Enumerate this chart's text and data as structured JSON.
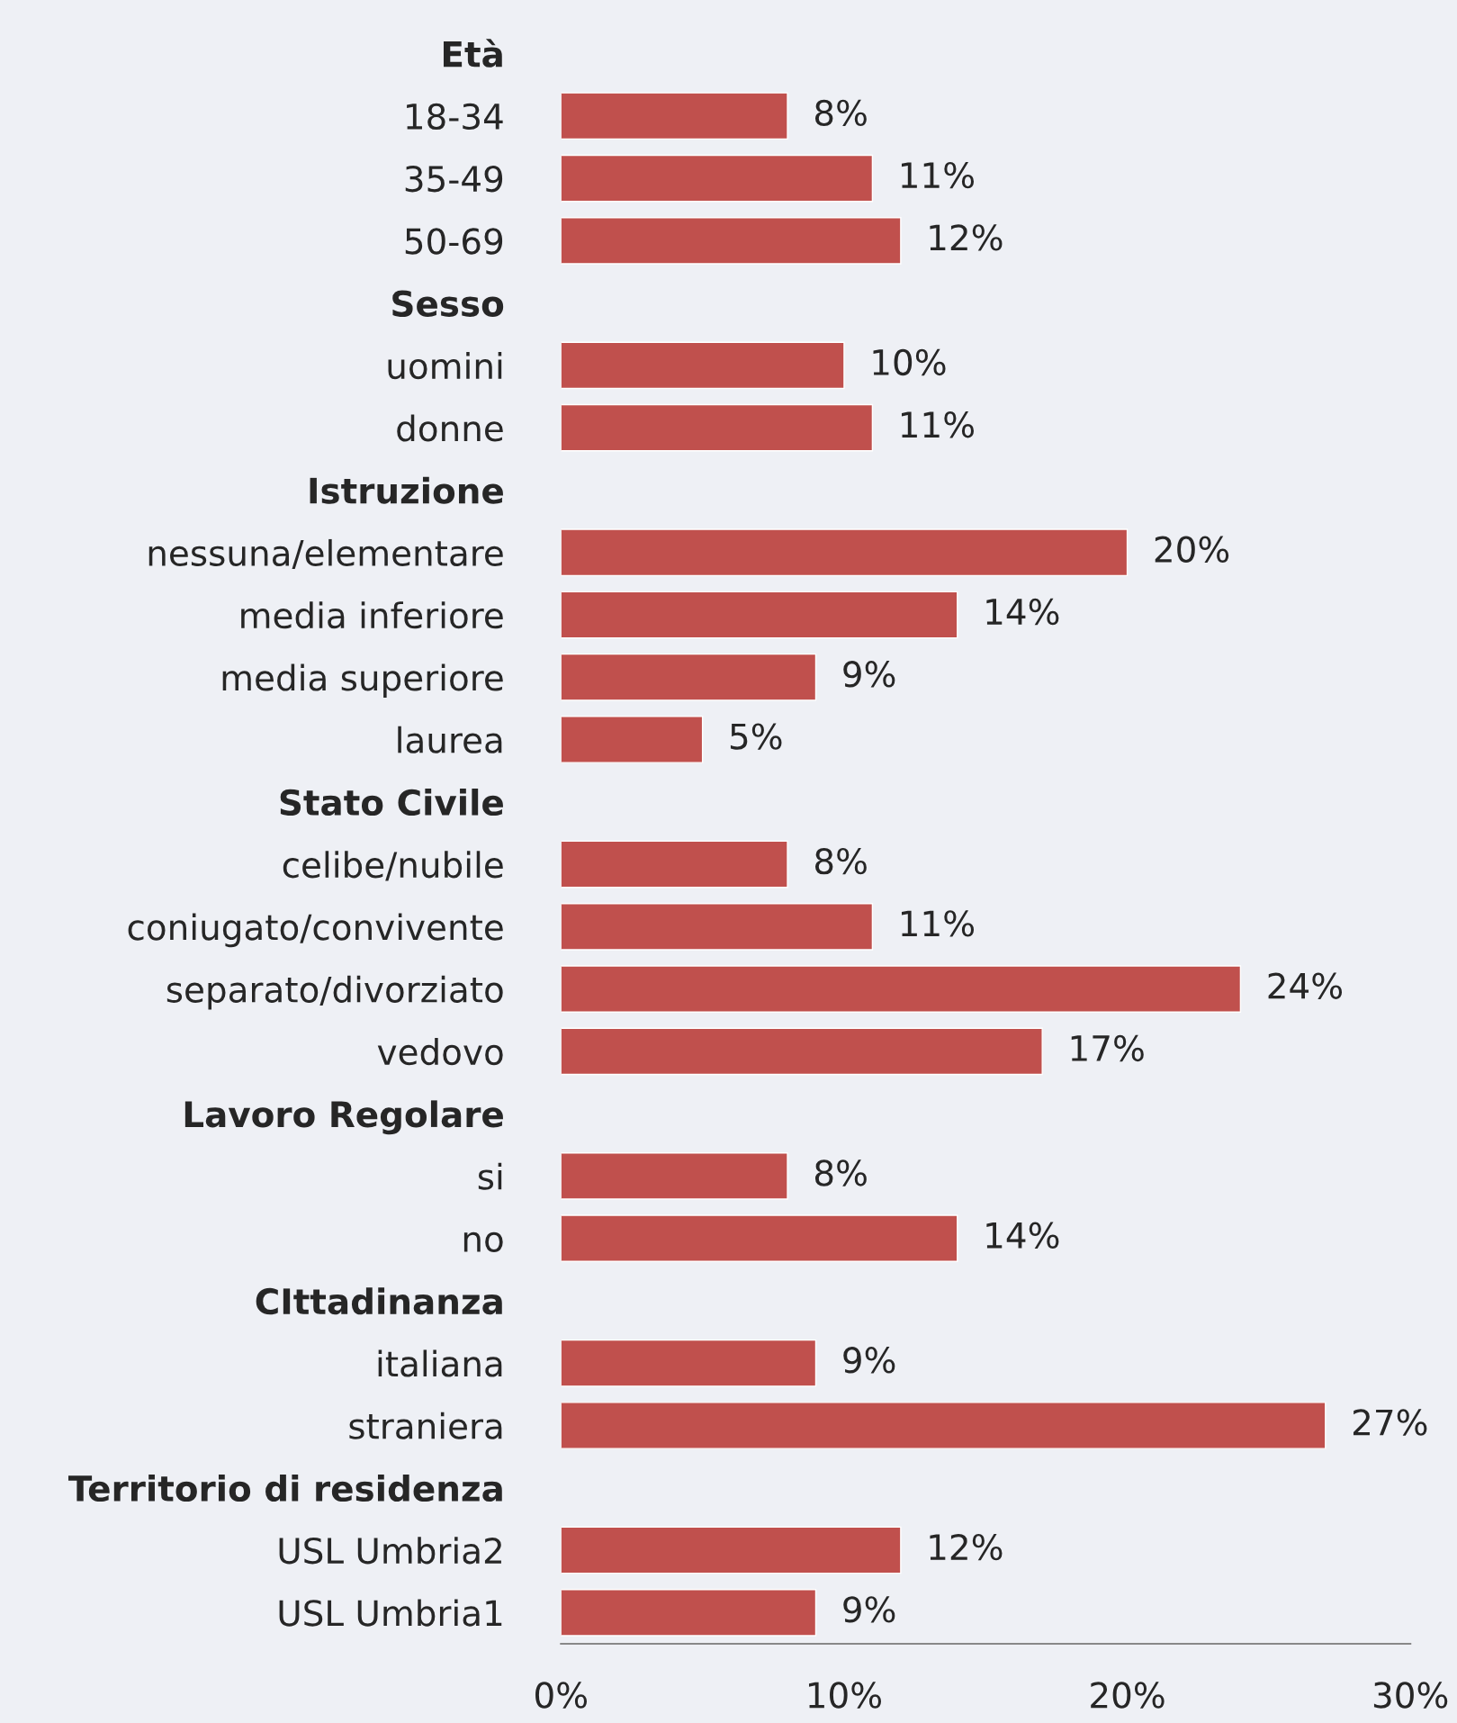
{
  "chart_data": {
    "type": "bar",
    "orientation": "horizontal",
    "color": "#c0504d",
    "categories": [
      "Età",
      "18-34",
      "35-49",
      "50-69",
      "Sesso",
      "uomini",
      "donne",
      "Istruzione",
      "nessuna/elementare",
      "media inferiore",
      "media superiore",
      "laurea",
      "Stato Civile",
      "celibe/nubile",
      "coniugato/convivente",
      "separato/divorziato",
      "vedovo",
      "Lavoro Regolare",
      "si",
      "no",
      "CIttadinanza",
      "italiana",
      "straniera",
      "Territorio di residenza",
      "USL Umbria2",
      "USL Umbria1"
    ],
    "values": [
      null,
      8,
      11,
      12,
      null,
      10,
      11,
      null,
      20,
      14,
      9,
      5,
      null,
      8,
      11,
      24,
      17,
      null,
      8,
      14,
      null,
      9,
      27,
      null,
      12,
      9
    ],
    "value_labels": [
      null,
      "8%",
      "11%",
      "12%",
      null,
      "10%",
      "11%",
      null,
      "20%",
      "14%",
      "9%",
      "5%",
      null,
      "8%",
      "11%",
      "24%",
      "17%",
      null,
      "8%",
      "14%",
      null,
      "9%",
      "27%",
      null,
      "12%",
      "9%"
    ],
    "xlim": [
      0,
      30
    ],
    "xticks": [
      {
        "value": 0,
        "label": "0%"
      },
      {
        "value": 10,
        "label": "10%"
      },
      {
        "value": 20,
        "label": "20%"
      },
      {
        "value": 30,
        "label": "30%"
      }
    ],
    "grid": false,
    "legend": false
  }
}
